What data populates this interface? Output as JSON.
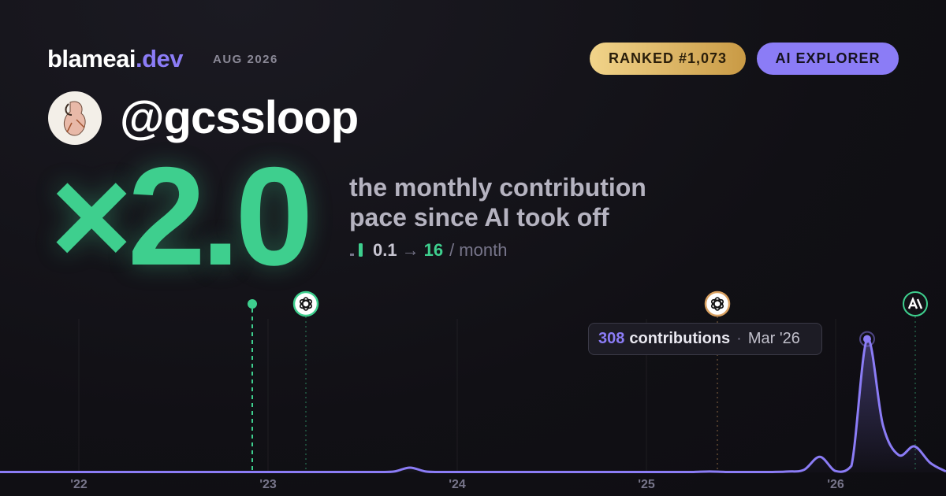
{
  "header": {
    "brand": "blameai",
    "brand_suffix": ".dev",
    "date": "AUG 2026",
    "rank": "RANKED #1,073",
    "badge": "AI EXPLORER"
  },
  "profile": {
    "handle": "@gcssloop"
  },
  "headline": {
    "multiplier": "×2.0",
    "line1": "the monthly contribution",
    "line2": "pace since AI took off",
    "from": "0.1",
    "arrow": "→",
    "to": "16",
    "unit": "/ month"
  },
  "tooltip": {
    "label": "contributions",
    "separator": "·",
    "date": "Mar '26"
  },
  "chart_data": {
    "type": "line",
    "x": [
      "2021-08",
      "2021-09",
      "2021-10",
      "2021-11",
      "2021-12",
      "2022-01",
      "2022-02",
      "2022-03",
      "2022-04",
      "2022-05",
      "2022-06",
      "2022-07",
      "2022-08",
      "2022-09",
      "2022-10",
      "2022-11",
      "2022-12",
      "2023-01",
      "2023-02",
      "2023-03",
      "2023-04",
      "2023-05",
      "2023-06",
      "2023-07",
      "2023-08",
      "2023-09",
      "2023-10",
      "2023-11",
      "2023-12",
      "2024-01",
      "2024-02",
      "2024-03",
      "2024-04",
      "2024-05",
      "2024-06",
      "2024-07",
      "2024-08",
      "2024-09",
      "2024-10",
      "2024-11",
      "2024-12",
      "2025-01",
      "2025-02",
      "2025-03",
      "2025-04",
      "2025-05",
      "2025-06",
      "2025-07",
      "2025-08",
      "2025-09",
      "2025-10",
      "2025-11",
      "2025-12",
      "2026-01",
      "2026-02",
      "2026-03",
      "2026-04",
      "2026-05",
      "2026-06",
      "2026-07",
      "2026-08"
    ],
    "series": [
      {
        "name": "contributions",
        "color": "#8b7cf6",
        "values": [
          1,
          1,
          1,
          1,
          1,
          1,
          1,
          1,
          1,
          1,
          1,
          1,
          1,
          1,
          1,
          1,
          1,
          1,
          1,
          1,
          1,
          1,
          1,
          1,
          1,
          2,
          11,
          2,
          1,
          1,
          1,
          1,
          1,
          1,
          1,
          1,
          1,
          1,
          1,
          1,
          1,
          1,
          1,
          1,
          1,
          2,
          1,
          1,
          1,
          1,
          2,
          6,
          36,
          3,
          15,
          308,
          109,
          40,
          60,
          22,
          2
        ]
      }
    ],
    "ylim": [
      0,
      320
    ],
    "xticks": [
      {
        "value": "2022-01",
        "label": "'22"
      },
      {
        "value": "2023-01",
        "label": "'23"
      },
      {
        "value": "2024-01",
        "label": "'24"
      },
      {
        "value": "2025-01",
        "label": "'25"
      },
      {
        "value": "2026-01",
        "label": "'26"
      }
    ],
    "grid": true
  }
}
